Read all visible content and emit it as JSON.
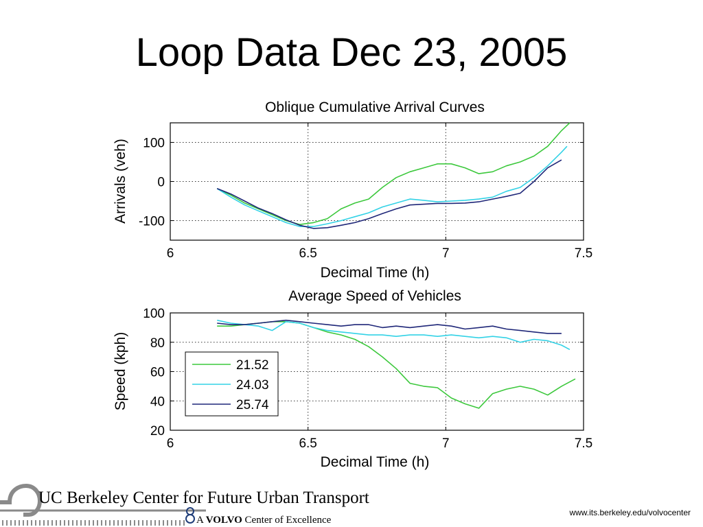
{
  "slide": {
    "title": "Loop Data Dec 23, 2005",
    "url": "www.its.berkeley.edu/volvocenter"
  },
  "logo": {
    "line1": "UC Berkeley Center for Future Urban Transport",
    "line2_prefix": "A",
    "line2_brand": "VOLVO",
    "line2_suffix": "Center of Excellence"
  },
  "colors": {
    "green": "#3cc83c",
    "cyan": "#32d2e6",
    "navy": "#1e2678"
  },
  "chart_data": [
    {
      "type": "line",
      "title": "Oblique Cumulative Arrival Curves",
      "xlabel": "Decimal Time (h)",
      "ylabel": "Arrivals (veh)",
      "xlim": [
        6,
        7.5
      ],
      "ylim": [
        -150,
        150
      ],
      "xticks": [
        6,
        6.5,
        7,
        7.5
      ],
      "xtick_labels": [
        "6",
        "6.5",
        "7",
        "7.5"
      ],
      "yticks": [
        100,
        0,
        -100
      ],
      "ytick_labels": [
        "100",
        "0",
        "-100"
      ],
      "grid": true,
      "series": [
        {
          "name": "21.52",
          "color": "green",
          "x": [
            6.17,
            6.22,
            6.27,
            6.32,
            6.37,
            6.42,
            6.47,
            6.52,
            6.57,
            6.62,
            6.67,
            6.72,
            6.77,
            6.82,
            6.87,
            6.92,
            6.97,
            7.02,
            7.07,
            7.12,
            7.17,
            7.22,
            7.27,
            7.32,
            7.37,
            7.42,
            7.45
          ],
          "y": [
            -18,
            -35,
            -55,
            -70,
            -85,
            -100,
            -110,
            -105,
            -95,
            -70,
            -55,
            -45,
            -15,
            10,
            25,
            35,
            45,
            45,
            35,
            20,
            25,
            40,
            50,
            65,
            90,
            130,
            150
          ]
        },
        {
          "name": "24.03",
          "color": "cyan",
          "x": [
            6.17,
            6.22,
            6.27,
            6.32,
            6.37,
            6.42,
            6.47,
            6.52,
            6.57,
            6.62,
            6.67,
            6.72,
            6.77,
            6.82,
            6.87,
            6.92,
            6.97,
            7.02,
            7.07,
            7.12,
            7.17,
            7.22,
            7.27,
            7.32,
            7.37,
            7.42,
            7.44
          ],
          "y": [
            -18,
            -40,
            -60,
            -75,
            -90,
            -105,
            -115,
            -115,
            -108,
            -100,
            -90,
            -80,
            -65,
            -55,
            -45,
            -48,
            -52,
            -50,
            -48,
            -45,
            -40,
            -25,
            -15,
            10,
            40,
            75,
            90
          ]
        },
        {
          "name": "25.74",
          "color": "navy",
          "x": [
            6.17,
            6.22,
            6.27,
            6.32,
            6.37,
            6.42,
            6.47,
            6.52,
            6.57,
            6.62,
            6.67,
            6.72,
            6.77,
            6.82,
            6.87,
            6.92,
            6.97,
            7.02,
            7.07,
            7.12,
            7.17,
            7.22,
            7.27,
            7.32,
            7.37,
            7.42
          ],
          "y": [
            -18,
            -32,
            -50,
            -68,
            -82,
            -98,
            -112,
            -120,
            -118,
            -112,
            -105,
            -95,
            -82,
            -70,
            -60,
            -58,
            -56,
            -56,
            -55,
            -52,
            -45,
            -38,
            -30,
            0,
            35,
            55
          ]
        }
      ]
    },
    {
      "type": "line",
      "title": "Average Speed of Vehicles",
      "xlabel": "Decimal Time (h)",
      "ylabel": "Speed (kph)",
      "xlim": [
        6,
        7.5
      ],
      "ylim": [
        20,
        100
      ],
      "xticks": [
        6,
        6.5,
        7,
        7.5
      ],
      "xtick_labels": [
        "6",
        "6.5",
        "7",
        "7.5"
      ],
      "yticks": [
        100,
        80,
        60,
        40,
        20
      ],
      "ytick_labels": [
        "100",
        "80",
        "60",
        "40",
        "20"
      ],
      "grid": true,
      "legend": {
        "placement": "lower-left",
        "entries": [
          "21.52",
          "24.03",
          "25.74"
        ]
      },
      "series": [
        {
          "name": "21.52",
          "color": "green",
          "x": [
            6.17,
            6.22,
            6.27,
            6.32,
            6.37,
            6.42,
            6.47,
            6.52,
            6.57,
            6.62,
            6.67,
            6.72,
            6.77,
            6.82,
            6.87,
            6.92,
            6.97,
            7.02,
            7.07,
            7.12,
            7.17,
            7.22,
            7.27,
            7.32,
            7.37,
            7.42,
            7.47
          ],
          "y": [
            91,
            91,
            92,
            93,
            94,
            94,
            93,
            90,
            87,
            85,
            82,
            77,
            70,
            62,
            52,
            50,
            49,
            42,
            38,
            35,
            45,
            48,
            50,
            48,
            44,
            50,
            55
          ]
        },
        {
          "name": "24.03",
          "color": "cyan",
          "x": [
            6.17,
            6.22,
            6.27,
            6.32,
            6.37,
            6.42,
            6.47,
            6.52,
            6.57,
            6.62,
            6.67,
            6.72,
            6.77,
            6.82,
            6.87,
            6.92,
            6.97,
            7.02,
            7.07,
            7.12,
            7.17,
            7.22,
            7.27,
            7.32,
            7.37,
            7.42,
            7.45
          ],
          "y": [
            95,
            93,
            92,
            91,
            88,
            94,
            93,
            90,
            88,
            87,
            86,
            85,
            85,
            84,
            85,
            85,
            84,
            85,
            84,
            83,
            84,
            83,
            80,
            82,
            81,
            78,
            75
          ]
        },
        {
          "name": "25.74",
          "color": "navy",
          "x": [
            6.17,
            6.22,
            6.27,
            6.32,
            6.37,
            6.42,
            6.47,
            6.52,
            6.57,
            6.62,
            6.67,
            6.72,
            6.77,
            6.82,
            6.87,
            6.92,
            6.97,
            7.02,
            7.07,
            7.12,
            7.17,
            7.22,
            7.27,
            7.32,
            7.37,
            7.42
          ],
          "y": [
            93,
            92,
            92,
            93,
            94,
            95,
            94,
            93,
            92,
            91,
            92,
            92,
            90,
            91,
            90,
            91,
            92,
            91,
            89,
            90,
            91,
            89,
            88,
            87,
            86,
            86
          ]
        }
      ]
    }
  ]
}
